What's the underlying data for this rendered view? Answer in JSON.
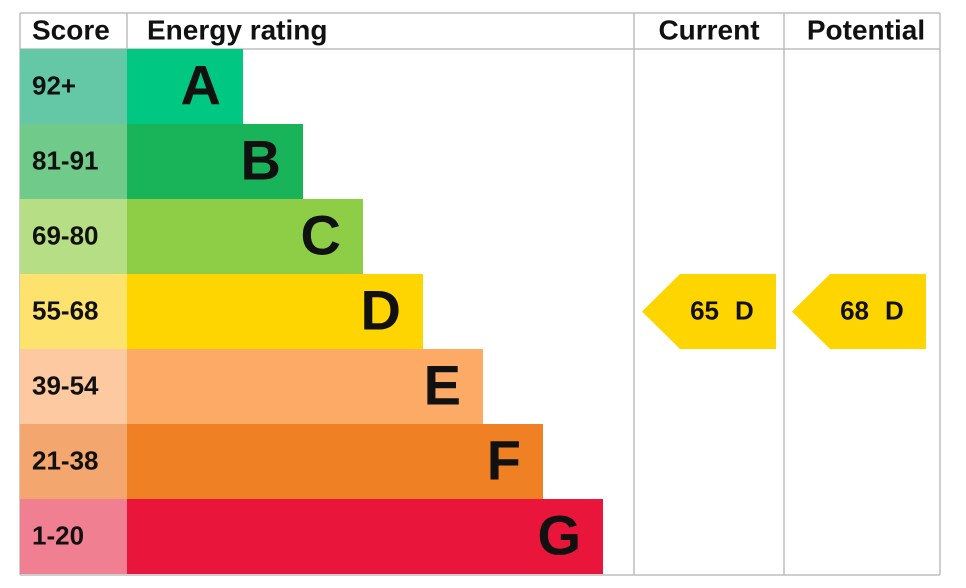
{
  "header": {
    "score": "Score",
    "rating": "Energy rating",
    "current": "Current",
    "potential": "Potential"
  },
  "rows": [
    {
      "score": "92+",
      "band": "A",
      "color": "#00c781",
      "score_color": "#64c8a6"
    },
    {
      "score": "81-91",
      "band": "B",
      "color": "#19b459",
      "score_color": "#70cb8b"
    },
    {
      "score": "69-80",
      "band": "C",
      "color": "#8dce46",
      "score_color": "#b6df85"
    },
    {
      "score": "55-68",
      "band": "D",
      "color": "#ffd500",
      "score_color": "#fde36e"
    },
    {
      "score": "39-54",
      "band": "E",
      "color": "#fcaa65",
      "score_color": "#fdc9a0"
    },
    {
      "score": "21-38",
      "band": "F",
      "color": "#ef8023",
      "score_color": "#f4a66f"
    },
    {
      "score": "1-20",
      "band": "G",
      "color": "#e9153b",
      "score_color": "#f07f92"
    }
  ],
  "current": {
    "value": 65,
    "band": "D"
  },
  "potential": {
    "value": 68,
    "band": "D"
  }
}
